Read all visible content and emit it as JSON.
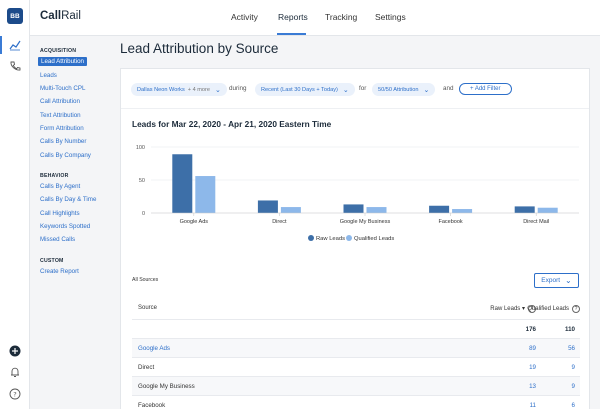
{
  "app": {
    "logo_bold": "Call",
    "logo_rest": "Rail",
    "avatar_initials": "BB"
  },
  "nav": {
    "items": [
      "Activity",
      "Reports",
      "Tracking",
      "Settings"
    ],
    "active": "Reports"
  },
  "rail_icons": [
    "chart-icon",
    "phone-track-icon",
    "add-icon",
    "bell-icon",
    "help-icon"
  ],
  "sidebar": {
    "acquisition_heading": "ACQUISITION",
    "acquisition": [
      "Lead Attribution",
      "Leads",
      "Multi-Touch CPL",
      "Call Attribution",
      "Text Attribution",
      "Form Attribution",
      "Calls By Number",
      "Calls By Company"
    ],
    "behavior_heading": "BEHAVIOR",
    "behavior": [
      "Calls By Agent",
      "Calls By Day & Time",
      "Call Highlights",
      "Keywords Spotted",
      "Missed Calls"
    ],
    "custom_heading": "CUSTOM",
    "custom": [
      "Create Report"
    ]
  },
  "page": {
    "title": "Lead Attribution by Source"
  },
  "filters": {
    "company": "Dallas Neon Works",
    "company_more": "+ 4 more",
    "during_label": "during",
    "date_range": "Recent (Last 30 Days + Today)",
    "for_label": "for",
    "attribution": "50/50 Attribution",
    "and_label": "and",
    "add_filter": "+ Add Filter"
  },
  "chart_title": "Leads for Mar 22, 2020 - Apr 21, 2020 Eastern Time",
  "chart_data": {
    "type": "bar",
    "categories": [
      "Google Ads",
      "Direct",
      "Google My Business",
      "Facebook",
      "Direct Mail"
    ],
    "series": [
      {
        "name": "Raw Leads",
        "values": [
          89,
          19,
          13,
          11,
          10
        ],
        "color": "#3d6fa8"
      },
      {
        "name": "Qualified Leads",
        "values": [
          56,
          9,
          9,
          6,
          8
        ],
        "color": "#8db8ea"
      }
    ],
    "yticks": [
      "100",
      "50",
      "0"
    ],
    "ylim": [
      0,
      100
    ],
    "legend": "bottom"
  },
  "table": {
    "scope_label": "All Sources",
    "export_label": "Export",
    "headers": {
      "source": "Source",
      "raw": "Raw Leads",
      "qualified": "Qualified Leads"
    },
    "total": {
      "raw": "176",
      "qualified": "110"
    },
    "rows": [
      {
        "source": "Google Ads",
        "raw": "89",
        "qualified": "56"
      },
      {
        "source": "Direct",
        "raw": "19",
        "qualified": "9"
      },
      {
        "source": "Google My Business",
        "raw": "13",
        "qualified": "9"
      },
      {
        "source": "Facebook",
        "raw": "11",
        "qualified": "6"
      }
    ]
  }
}
